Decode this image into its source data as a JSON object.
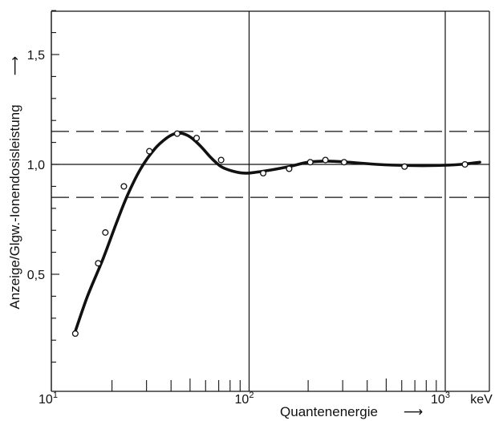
{
  "chart_data": {
    "type": "line",
    "title": "",
    "xlabel": "Quantenenergie",
    "xlabel_arrow": "⟶",
    "ylabel": "Anzeige/Glgw.-Ionendosisleistung",
    "ylabel_arrow": "⟶",
    "xscale": "log",
    "xlim": [
      10,
      1600
    ],
    "ylim": [
      0,
      1.75
    ],
    "x_ticks": [
      {
        "value": 10,
        "base": "10",
        "exp": "1"
      },
      {
        "value": 100,
        "base": "10",
        "exp": "2"
      },
      {
        "value": 1000,
        "base": "10",
        "exp": "3"
      }
    ],
    "x_unit_label": "keV",
    "y_ticks": [
      {
        "value": 0.5,
        "label": "0,5"
      },
      {
        "value": 1.0,
        "label": "1,0"
      },
      {
        "value": 1.5,
        "label": "1,5"
      }
    ],
    "grid": {
      "vertical_at": [
        100,
        1000
      ],
      "horizontal_at": [
        1.0
      ]
    },
    "reference_lines": [
      {
        "y": 1.15,
        "style": "dashed"
      },
      {
        "y": 0.85,
        "style": "dashed"
      }
    ],
    "series": [
      {
        "x": [
          13,
          15,
          18,
          21,
          24,
          28,
          33,
          38,
          42,
          46,
          51,
          57,
          64,
          72,
          82,
          95,
          110,
          130,
          160,
          200,
          250,
          320,
          450,
          650,
          900,
          1200,
          1500
        ],
        "y": [
          0.24,
          0.4,
          0.57,
          0.73,
          0.86,
          0.98,
          1.07,
          1.12,
          1.14,
          1.14,
          1.12,
          1.08,
          1.03,
          0.99,
          0.97,
          0.96,
          0.965,
          0.975,
          0.99,
          1.01,
          1.015,
          1.01,
          1.0,
          0.995,
          0.995,
          1.0,
          1.01
        ]
      }
    ],
    "points": {
      "x": [
        13,
        17,
        18.5,
        23,
        31,
        43,
        54,
        72,
        118,
        160,
        205,
        245,
        305,
        620,
        1260
      ],
      "y": [
        0.23,
        0.55,
        0.69,
        0.9,
        1.06,
        1.14,
        1.12,
        1.02,
        0.96,
        0.98,
        1.01,
        1.02,
        1.01,
        0.99,
        1.0
      ]
    }
  }
}
